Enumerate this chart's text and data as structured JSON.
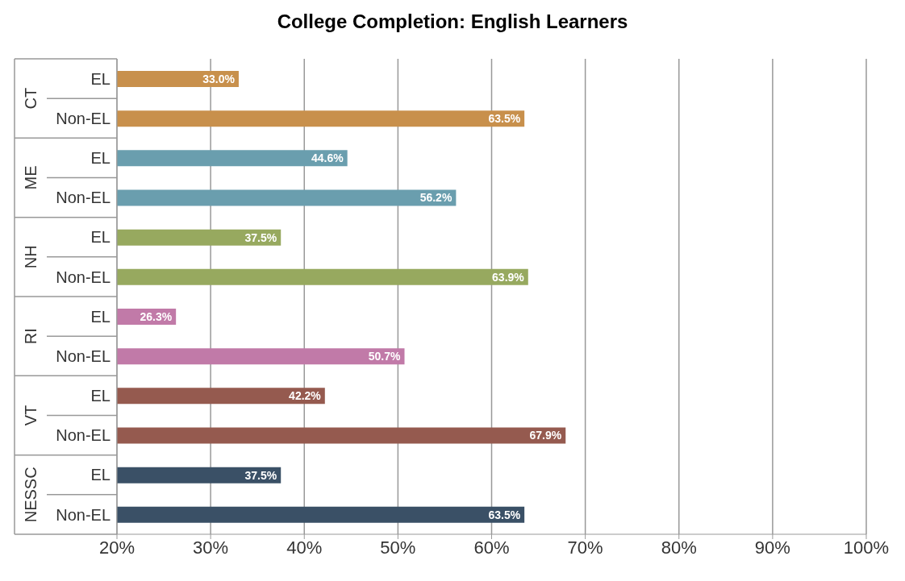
{
  "chart_data": {
    "type": "bar",
    "orientation": "horizontal",
    "title": "College Completion: English Learners",
    "categories": [
      "EL",
      "Non-EL",
      "EL",
      "Non-EL",
      "EL",
      "Non-EL",
      "EL",
      "Non-EL",
      "EL",
      "Non-EL",
      "EL",
      "Non-EL"
    ],
    "values": [
      33.0,
      63.5,
      44.6,
      56.2,
      37.5,
      63.9,
      26.3,
      50.7,
      42.2,
      67.9,
      37.5,
      63.5
    ],
    "value_labels": [
      "33.0%",
      "63.5%",
      "44.6%",
      "56.2%",
      "37.5%",
      "63.9%",
      "26.3%",
      "50.7%",
      "42.2%",
      "67.9%",
      "37.5%",
      "63.5%"
    ],
    "colors": [
      "#c8904c",
      "#c8904c",
      "#6a9eae",
      "#6a9eae",
      "#97a95f",
      "#97a95f",
      "#c17aa8",
      "#c17aa8",
      "#955a4f",
      "#955a4f",
      "#3a5066",
      "#3a5066"
    ],
    "annotations": [
      "CT",
      "ME",
      "NH",
      "RI",
      "VT",
      "NESSC"
    ],
    "xlim": [
      20,
      100
    ],
    "xticks": [
      {
        "value": 20,
        "label": "20%"
      },
      {
        "value": 30,
        "label": "30%"
      },
      {
        "value": 40,
        "label": "40%"
      },
      {
        "value": 50,
        "label": "50%"
      },
      {
        "value": 60,
        "label": "60%"
      },
      {
        "value": 70,
        "label": "70%"
      },
      {
        "value": 80,
        "label": "80%"
      },
      {
        "value": 90,
        "label": "90%"
      },
      {
        "value": 100,
        "label": "100%"
      }
    ],
    "grid": "x",
    "legend": false
  }
}
